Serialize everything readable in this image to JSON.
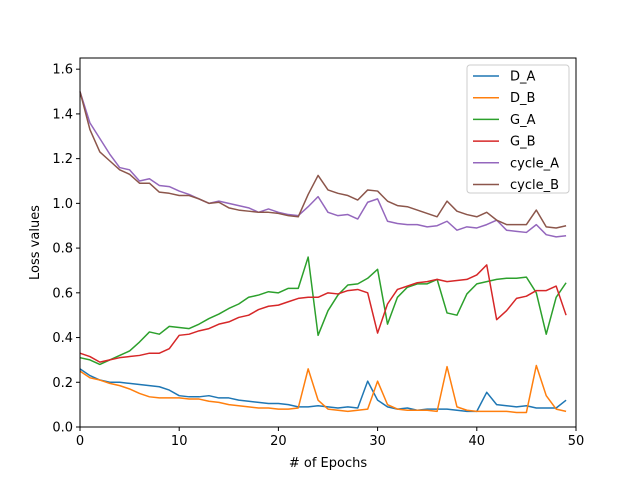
{
  "chart_data": {
    "type": "line",
    "title": "",
    "xlabel": "# of Epochs",
    "ylabel": "Loss values",
    "xlim": [
      0,
      50
    ],
    "ylim": [
      0.0,
      1.65
    ],
    "xticks": [
      0,
      10,
      20,
      30,
      40,
      50
    ],
    "yticks": [
      0.0,
      0.2,
      0.4,
      0.6,
      0.8,
      1.0,
      1.2,
      1.4,
      1.6
    ],
    "xtick_labels": [
      "0",
      "10",
      "20",
      "30",
      "40",
      "50"
    ],
    "ytick_labels": [
      "0.0",
      "0.2",
      "0.4",
      "0.6",
      "0.8",
      "1.0",
      "1.2",
      "1.4",
      "1.6"
    ],
    "grid": false,
    "legend_position": "top-right",
    "x": [
      0,
      1,
      2,
      3,
      4,
      5,
      6,
      7,
      8,
      9,
      10,
      11,
      12,
      13,
      14,
      15,
      16,
      17,
      18,
      19,
      20,
      21,
      22,
      23,
      24,
      25,
      26,
      27,
      28,
      29,
      30,
      31,
      32,
      33,
      34,
      35,
      36,
      37,
      38,
      39,
      40,
      41,
      42,
      43,
      44,
      45,
      46,
      47,
      48,
      49
    ],
    "series": [
      {
        "name": "D_A",
        "color": "#1f77b4",
        "values": [
          0.26,
          0.23,
          0.21,
          0.2,
          0.2,
          0.195,
          0.19,
          0.185,
          0.18,
          0.165,
          0.14,
          0.135,
          0.135,
          0.14,
          0.13,
          0.13,
          0.12,
          0.115,
          0.11,
          0.105,
          0.105,
          0.1,
          0.09,
          0.09,
          0.095,
          0.09,
          0.085,
          0.09,
          0.085,
          0.205,
          0.12,
          0.09,
          0.08,
          0.085,
          0.075,
          0.08,
          0.08,
          0.08,
          0.075,
          0.07,
          0.07,
          0.155,
          0.1,
          0.095,
          0.09,
          0.095,
          0.085,
          0.085,
          0.085,
          0.12
        ]
      },
      {
        "name": "D_B",
        "color": "#ff7f0e",
        "values": [
          0.25,
          0.22,
          0.21,
          0.195,
          0.185,
          0.17,
          0.15,
          0.135,
          0.13,
          0.13,
          0.13,
          0.125,
          0.125,
          0.115,
          0.11,
          0.1,
          0.095,
          0.09,
          0.085,
          0.085,
          0.08,
          0.08,
          0.085,
          0.26,
          0.12,
          0.08,
          0.075,
          0.07,
          0.075,
          0.08,
          0.205,
          0.1,
          0.08,
          0.075,
          0.075,
          0.075,
          0.07,
          0.27,
          0.09,
          0.075,
          0.07,
          0.07,
          0.07,
          0.07,
          0.065,
          0.065,
          0.275,
          0.14,
          0.08,
          0.07
        ]
      },
      {
        "name": "G_A",
        "color": "#2ca02c",
        "values": [
          0.31,
          0.3,
          0.28,
          0.3,
          0.32,
          0.34,
          0.38,
          0.425,
          0.415,
          0.45,
          0.445,
          0.44,
          0.46,
          0.485,
          0.505,
          0.53,
          0.55,
          0.58,
          0.59,
          0.605,
          0.6,
          0.62,
          0.62,
          0.76,
          0.41,
          0.52,
          0.59,
          0.635,
          0.64,
          0.665,
          0.705,
          0.46,
          0.58,
          0.625,
          0.64,
          0.64,
          0.66,
          0.51,
          0.5,
          0.595,
          0.64,
          0.65,
          0.66,
          0.665,
          0.665,
          0.67,
          0.6,
          0.415,
          0.58,
          0.645
        ]
      },
      {
        "name": "G_B",
        "color": "#d62728",
        "values": [
          0.33,
          0.315,
          0.29,
          0.3,
          0.31,
          0.315,
          0.32,
          0.33,
          0.33,
          0.35,
          0.41,
          0.415,
          0.43,
          0.44,
          0.46,
          0.47,
          0.49,
          0.5,
          0.525,
          0.54,
          0.545,
          0.56,
          0.575,
          0.58,
          0.58,
          0.6,
          0.595,
          0.61,
          0.615,
          0.6,
          0.42,
          0.55,
          0.615,
          0.63,
          0.645,
          0.65,
          0.66,
          0.65,
          0.655,
          0.66,
          0.68,
          0.725,
          0.48,
          0.52,
          0.575,
          0.585,
          0.61,
          0.61,
          0.63,
          0.5
        ]
      },
      {
        "name": "cycle_A",
        "color": "#9467bd",
        "values": [
          1.5,
          1.36,
          1.29,
          1.22,
          1.16,
          1.15,
          1.1,
          1.11,
          1.08,
          1.075,
          1.055,
          1.04,
          1.02,
          1.0,
          1.01,
          1.0,
          0.99,
          0.98,
          0.96,
          0.975,
          0.96,
          0.95,
          0.945,
          0.985,
          1.03,
          0.96,
          0.945,
          0.95,
          0.93,
          1.005,
          1.02,
          0.92,
          0.91,
          0.905,
          0.905,
          0.895,
          0.9,
          0.92,
          0.88,
          0.895,
          0.89,
          0.905,
          0.925,
          0.88,
          0.875,
          0.87,
          0.905,
          0.86,
          0.85,
          0.855
        ]
      },
      {
        "name": "cycle_B",
        "color": "#8c564b",
        "values": [
          1.5,
          1.33,
          1.23,
          1.19,
          1.15,
          1.13,
          1.09,
          1.09,
          1.05,
          1.045,
          1.035,
          1.035,
          1.02,
          1.0,
          1.005,
          0.98,
          0.97,
          0.965,
          0.96,
          0.96,
          0.955,
          0.945,
          0.94,
          1.04,
          1.125,
          1.06,
          1.045,
          1.035,
          1.015,
          1.06,
          1.055,
          1.01,
          0.99,
          0.985,
          0.97,
          0.955,
          0.94,
          1.01,
          0.965,
          0.95,
          0.94,
          0.96,
          0.925,
          0.905,
          0.905,
          0.905,
          0.97,
          0.895,
          0.89,
          0.9
        ]
      }
    ]
  }
}
